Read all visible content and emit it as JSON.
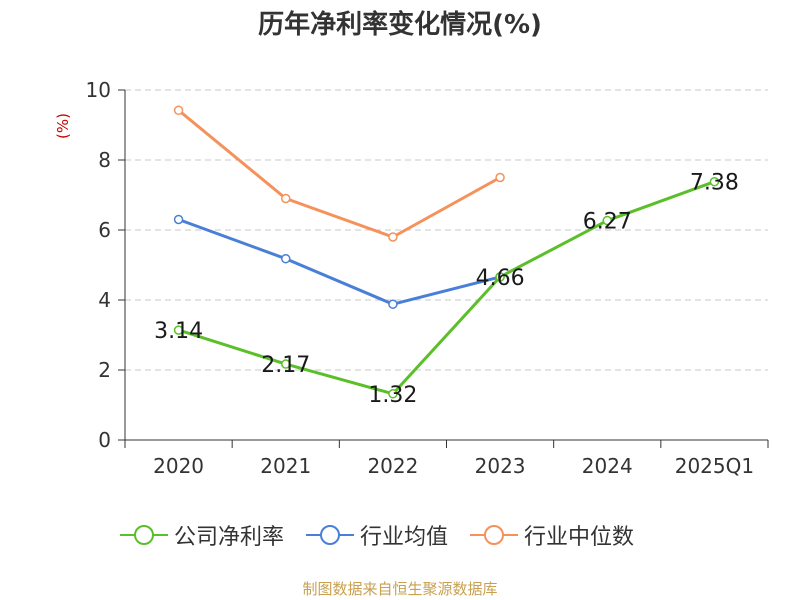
{
  "footer": {
    "text": "制图数据来自恒生聚源数据库",
    "color": "#c8a050"
  },
  "chart_data": {
    "type": "line",
    "title": "历年净利率变化情况(%)",
    "ylabel": "(%)",
    "ylim": [
      0,
      10
    ],
    "yticks": [
      0,
      2,
      4,
      6,
      8,
      10
    ],
    "grid": true,
    "legend_position": "bottom",
    "categories": [
      "2020",
      "2021",
      "2022",
      "2023",
      "2024",
      "2025Q1"
    ],
    "series": [
      {
        "name": "公司净利率",
        "color": "#5bbf2a",
        "labeled": true,
        "values": [
          3.14,
          2.17,
          1.32,
          4.66,
          6.27,
          7.38
        ],
        "labels": [
          "3.14",
          "2.17",
          "1.32",
          "4.66",
          "6.27",
          "7.38"
        ]
      },
      {
        "name": "行业均值",
        "color": "#4a7fd8",
        "labeled": false,
        "values": [
          6.3,
          5.18,
          3.88,
          4.66,
          null,
          null
        ]
      },
      {
        "name": "行业中位数",
        "color": "#f5915a",
        "labeled": false,
        "values": [
          9.42,
          6.9,
          5.8,
          7.5,
          null,
          null
        ]
      }
    ]
  }
}
